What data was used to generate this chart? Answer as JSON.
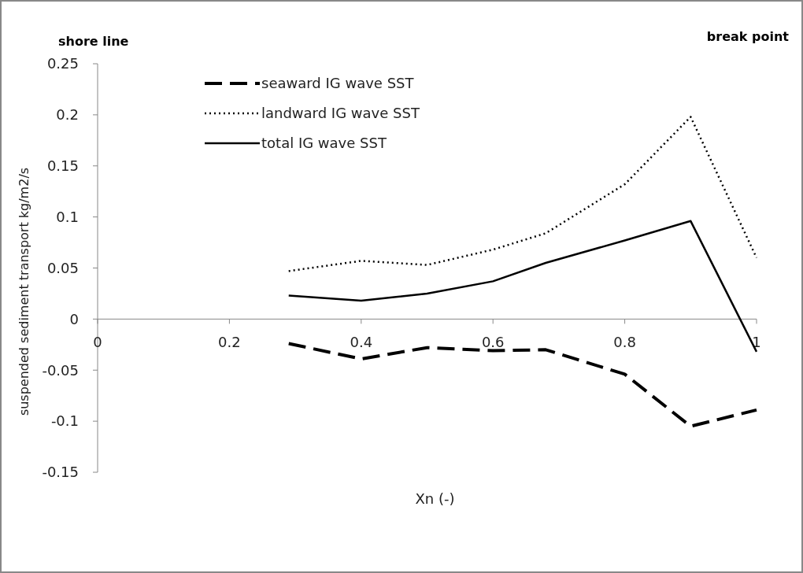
{
  "chart_data": {
    "type": "line",
    "xlabel": "Xn (-)",
    "ylabel": "suspended sediment transport kg/m2/s",
    "annotations": [
      "shore line",
      "break point"
    ],
    "x": [
      0.29,
      0.4,
      0.5,
      0.6,
      0.68,
      0.8,
      0.9,
      1.0
    ],
    "series": [
      {
        "name": "seaward IG wave SST",
        "color": "#000000",
        "line_style": "dashed",
        "values": [
          -0.024,
          -0.039,
          -0.028,
          -0.031,
          -0.03,
          -0.054,
          -0.105,
          -0.089
        ]
      },
      {
        "name": "landward IG wave SST",
        "color": "#000000",
        "line_style": "dotted",
        "values": [
          0.047,
          0.057,
          0.053,
          0.068,
          0.084,
          0.132,
          0.198,
          0.06
        ]
      },
      {
        "name": "total IG wave SST",
        "color": "#000000",
        "line_style": "solid",
        "values": [
          0.023,
          0.018,
          0.025,
          0.037,
          0.055,
          0.077,
          0.096,
          -0.032
        ]
      }
    ],
    "xlim": [
      0,
      1
    ],
    "xticks": [
      0,
      0.2,
      0.4,
      0.6,
      0.8,
      1
    ],
    "ylim": [
      -0.15,
      0.25
    ],
    "yticks": [
      -0.15,
      -0.1,
      -0.05,
      0,
      0.05,
      0.1,
      0.15,
      0.2,
      0.25
    ],
    "grid": false,
    "legend": "top left",
    "marker": "none"
  }
}
